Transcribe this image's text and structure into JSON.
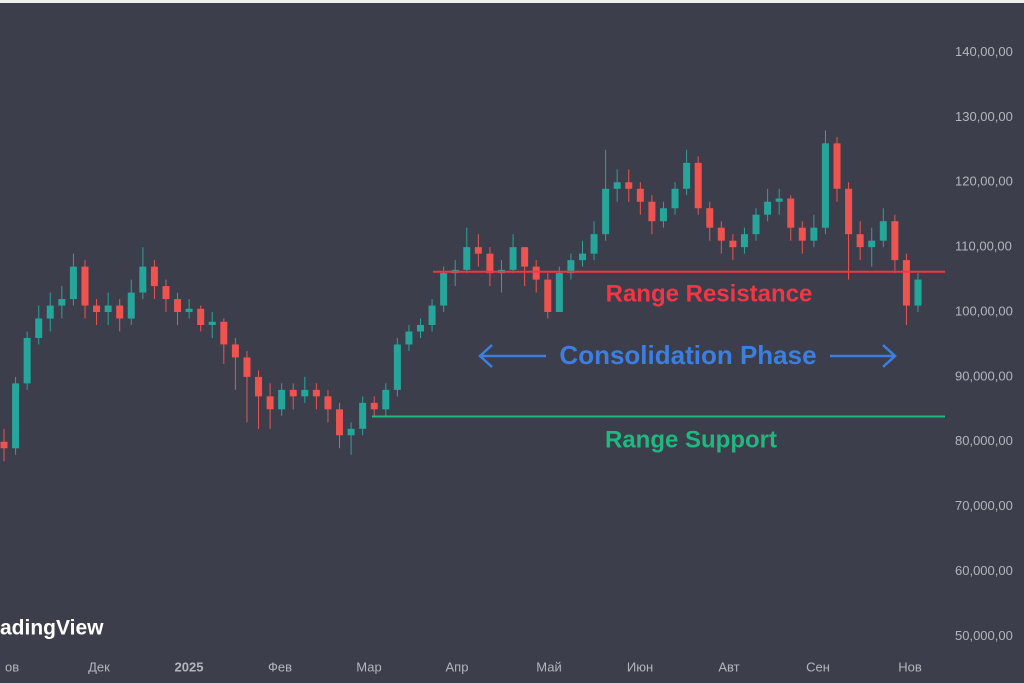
{
  "chart_data": {
    "type": "candlestick",
    "open": [
      80,
      79,
      89,
      96,
      99,
      101,
      102,
      107,
      101,
      100,
      101,
      99,
      103,
      107,
      104,
      102,
      100,
      100.5,
      98,
      98.5,
      95,
      93,
      90,
      87,
      85,
      88,
      87,
      88,
      87,
      85,
      81,
      82,
      86,
      85,
      88,
      95,
      97,
      98,
      101,
      106,
      106.5,
      110,
      109,
      106,
      106.5,
      110,
      107,
      105,
      100,
      106,
      108,
      109,
      112,
      119,
      120,
      119,
      117,
      114,
      116,
      119,
      123,
      116,
      113,
      111,
      110,
      112,
      115,
      117,
      117.5,
      113,
      111,
      113,
      126,
      119,
      112,
      110,
      111,
      114,
      108,
      101
    ],
    "high": [
      82,
      90,
      97,
      101,
      103,
      104,
      109,
      108,
      102,
      103,
      102,
      105,
      110,
      108,
      105,
      103,
      102,
      101,
      100,
      99,
      96,
      94,
      91,
      89,
      89,
      89,
      90,
      89,
      88,
      86,
      83,
      87,
      87,
      89,
      96,
      98,
      99,
      102,
      107,
      108,
      113,
      112,
      110,
      108,
      112,
      110,
      108,
      106,
      107,
      109,
      111,
      114,
      125,
      122,
      122,
      120,
      118,
      117,
      120,
      125,
      124,
      117,
      114,
      112,
      113,
      116,
      119,
      119,
      118,
      114,
      115,
      128,
      127,
      120,
      114,
      113,
      116,
      115,
      109,
      106
    ],
    "low": [
      77,
      78,
      88,
      95,
      97,
      99,
      101,
      99,
      98,
      98,
      97,
      98,
      102,
      102,
      100,
      98,
      99,
      97,
      96,
      92,
      88,
      83,
      82,
      82,
      84,
      85,
      86,
      85,
      83,
      79,
      78,
      81,
      84,
      84,
      87,
      94,
      96,
      97,
      100,
      104,
      106,
      107,
      104,
      103,
      106,
      104,
      103,
      99,
      100,
      105,
      107,
      108,
      111,
      117,
      117,
      115,
      112,
      113,
      115,
      118,
      115,
      111,
      109,
      108,
      109,
      111,
      114,
      115,
      111,
      109,
      110,
      112,
      117,
      105,
      108,
      107,
      110,
      106,
      98,
      100
    ],
    "close": [
      79,
      89,
      96,
      99,
      101,
      102,
      107,
      101,
      100,
      101,
      99,
      103,
      107,
      104,
      102,
      100,
      100.5,
      98,
      98.5,
      95,
      93,
      90,
      87,
      85,
      88,
      87,
      88,
      87,
      85,
      81,
      82,
      86,
      85,
      88,
      95,
      97,
      98,
      101,
      106,
      106.5,
      110,
      109,
      106,
      106.5,
      110,
      107,
      105,
      100,
      106,
      108,
      109,
      112,
      119,
      120,
      119,
      117,
      114,
      116,
      119,
      123,
      116,
      113,
      111,
      110,
      112,
      115,
      117,
      117.5,
      113,
      111,
      113,
      126,
      119,
      112,
      110,
      111,
      114,
      108,
      101,
      105
    ],
    "up_color": "#26a69a",
    "down_color": "#ef5350",
    "x_labels": [
      "ов",
      "Дек",
      "2025",
      "Фев",
      "Мар",
      "Апр",
      "Май",
      "Июн",
      "Авт",
      "Сен",
      "Нов"
    ],
    "ylim": [
      47.9,
      148.1
    ],
    "yticks": [
      {
        "value": 140,
        "label": "140,00,00"
      },
      {
        "value": 130,
        "label": "130,00,00"
      },
      {
        "value": 120,
        "label": "120,00,00"
      },
      {
        "value": 110,
        "label": "110,00,00"
      },
      {
        "value": 100,
        "label": "100,00,00"
      },
      {
        "value": 90,
        "label": "90,000,00"
      },
      {
        "value": 80,
        "label": "80,000,00"
      },
      {
        "value": 70,
        "label": "70,000,00"
      },
      {
        "value": 60,
        "label": "60,000,00"
      },
      {
        "value": 50,
        "label": "50,000,00"
      }
    ],
    "resistance": {
      "label": "Range Resistance",
      "value": 106.2,
      "color": "#f23645"
    },
    "support": {
      "label": "Range Support",
      "value": 83.9,
      "color": "#1fb87f"
    },
    "phase": {
      "label": "Consolidation Phase",
      "color": "#3d7fe0"
    },
    "watermark": "adingView"
  }
}
